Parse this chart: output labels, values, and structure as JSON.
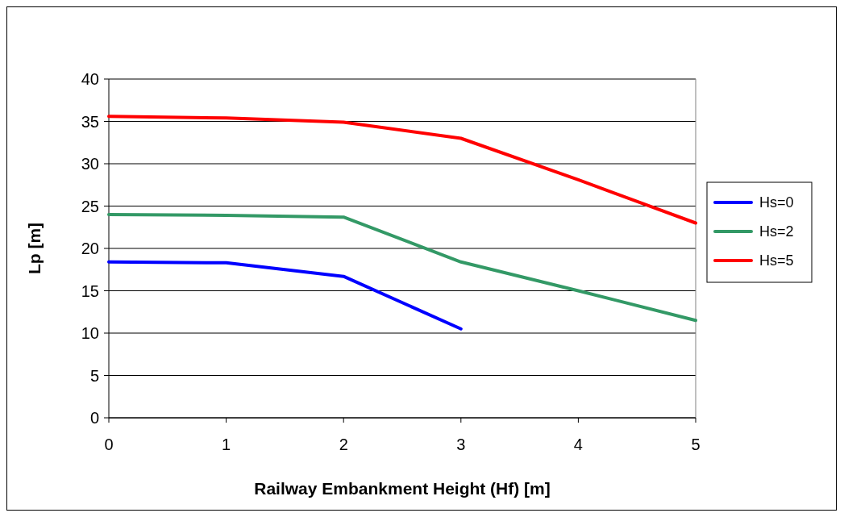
{
  "chart_data": {
    "type": "line",
    "xlabel": "Railway Embankment Height (Hf) [m]",
    "ylabel": "Lp [m]",
    "x": [
      0,
      1,
      2,
      3,
      4,
      5
    ],
    "series": [
      {
        "name": "Hs=0",
        "color": "#0000ff",
        "values": [
          18.4,
          18.3,
          16.7,
          10.5,
          null,
          null
        ]
      },
      {
        "name": "Hs=2",
        "color": "#339966",
        "values": [
          24.0,
          23.9,
          23.7,
          18.4,
          15.0,
          11.5
        ]
      },
      {
        "name": "Hs=5",
        "color": "#ff0000",
        "values": [
          35.6,
          35.4,
          34.9,
          33.0,
          28.1,
          23.0
        ]
      }
    ],
    "xlim": [
      0,
      5
    ],
    "xticks": [
      0,
      1,
      2,
      3,
      4,
      5
    ],
    "ylim": [
      0,
      40
    ],
    "yticks": [
      0,
      5,
      10,
      15,
      20,
      25,
      30,
      35,
      40
    ],
    "grid": "y",
    "legend": "right",
    "marker": "none",
    "line_style": "solid"
  }
}
